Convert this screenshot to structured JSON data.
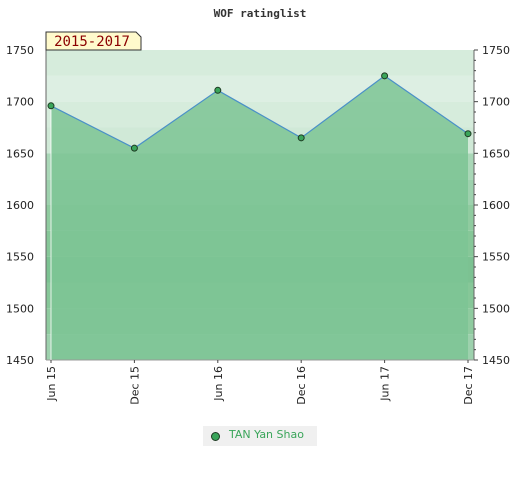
{
  "chart_data": {
    "type": "line",
    "title": "WOF ratinglist",
    "period_label": "2015-2017",
    "categories": [
      "Jun 15",
      "Dec 15",
      "Jun 16",
      "Dec 16",
      "Jun 17",
      "Dec 17"
    ],
    "series": [
      {
        "name": "TAN Yan Shao",
        "values": [
          1696,
          1655,
          1711,
          1665,
          1725,
          1669
        ]
      }
    ],
    "ylim": [
      1450,
      1750
    ],
    "yticks": [
      1450,
      1500,
      1550,
      1600,
      1650,
      1700,
      1750
    ],
    "grid": true,
    "legend_position": "bottom-center",
    "colors": {
      "line": "#4a90c8",
      "marker": "#3aa55a",
      "fill": "#7cc494",
      "band_light": "#c8e6d2",
      "band_dark": "#8fcb9f",
      "badge_bg": "#fffacc",
      "badge_text": "#8b0000"
    }
  }
}
